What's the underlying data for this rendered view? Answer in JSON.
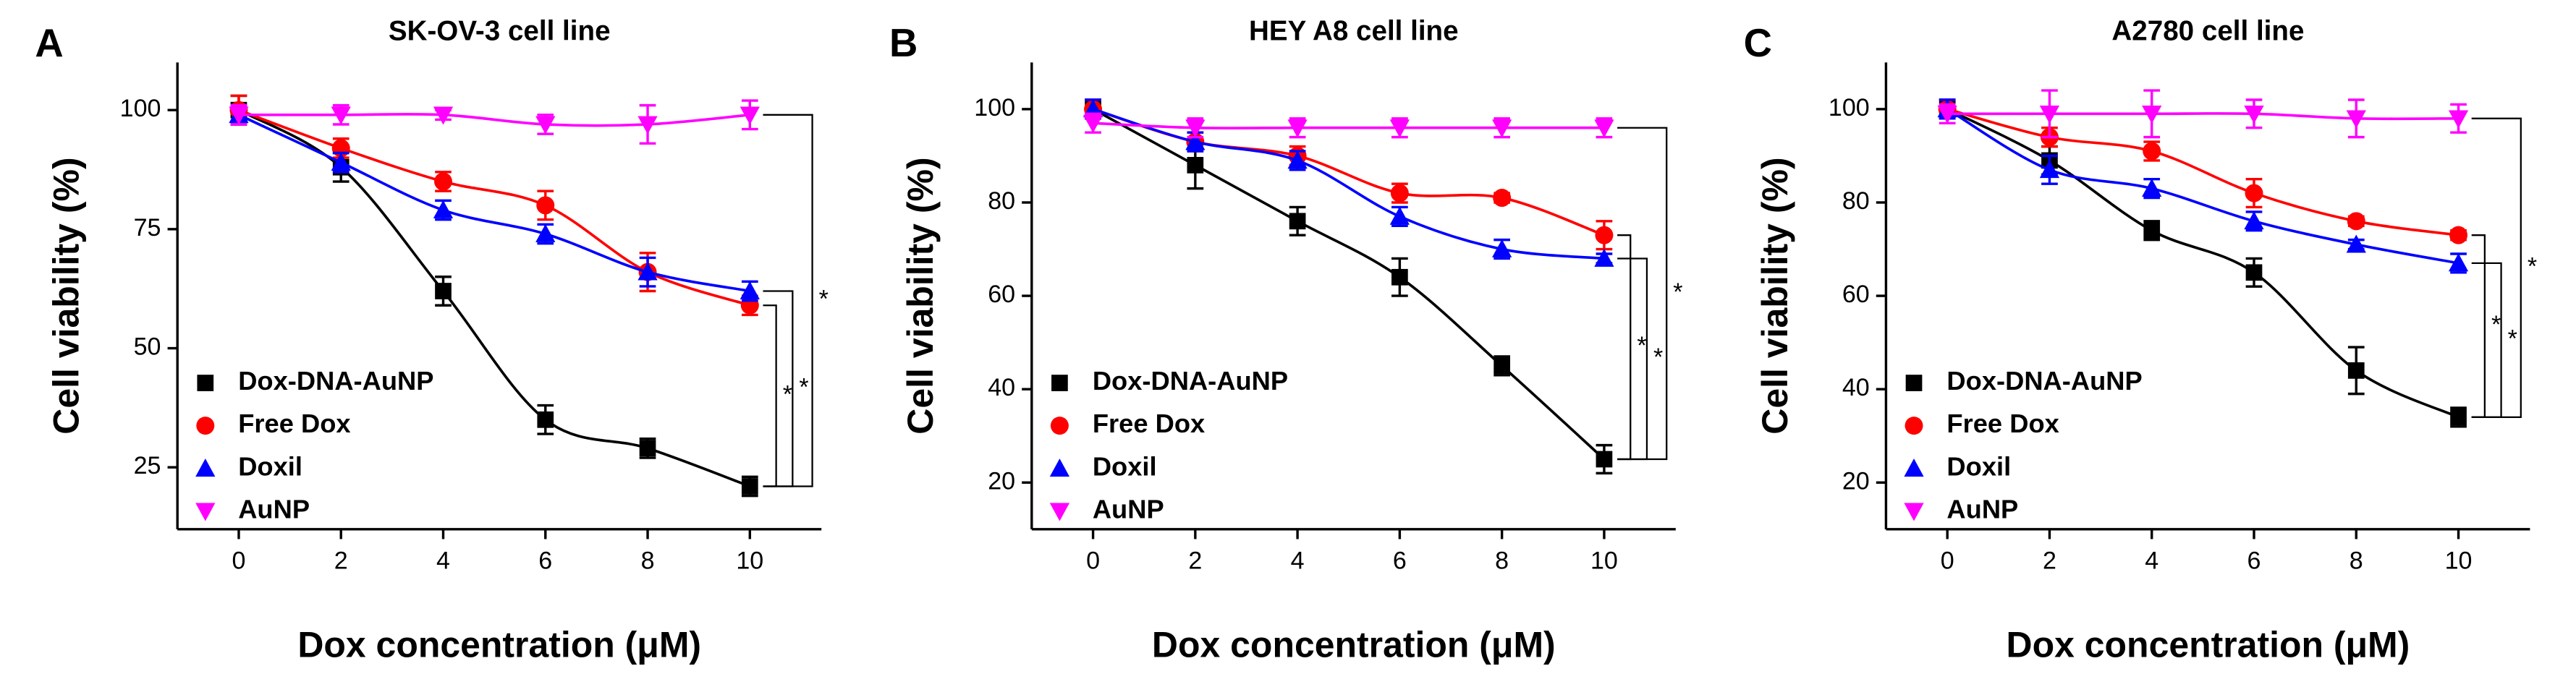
{
  "chart_data": [
    {
      "type": "scatter",
      "label": "A",
      "title": "SK-OV-3 cell line",
      "xlabel": "Dox concentration (μM)",
      "ylabel": "Cell viability (%)",
      "x": [
        0,
        2,
        4,
        6,
        8,
        10
      ],
      "xlim": [
        -1.2,
        11.4
      ],
      "xticks": [
        0,
        2,
        4,
        6,
        8,
        10
      ],
      "ylim": [
        12,
        110
      ],
      "yticks": [
        25,
        50,
        75,
        100
      ],
      "legend": "lower left",
      "significance": [
        "*",
        "*",
        "*"
      ],
      "series": [
        {
          "name": "Dox-DNA-AuNP",
          "color": "#000000",
          "marker": "square",
          "values": [
            100,
            88,
            62,
            35,
            29,
            21
          ],
          "errors": [
            3,
            3,
            3,
            3,
            2,
            2
          ]
        },
        {
          "name": "Free Dox",
          "color": "#ff0000",
          "marker": "circle",
          "values": [
            100,
            92,
            85,
            80,
            66,
            59
          ],
          "errors": [
            3,
            2,
            2,
            3,
            4,
            2
          ]
        },
        {
          "name": "Doxil",
          "color": "#0000ff",
          "marker": "triangle-up",
          "values": [
            99,
            89,
            79,
            74,
            66,
            62
          ],
          "errors": [
            2,
            2,
            2,
            2,
            3,
            2
          ]
        },
        {
          "name": "AuNP",
          "color": "#ff00ff",
          "marker": "triangle-down",
          "values": [
            99,
            99,
            99,
            97,
            97,
            99
          ],
          "errors": [
            2,
            2,
            1,
            2,
            4,
            3
          ]
        }
      ]
    },
    {
      "type": "scatter",
      "label": "B",
      "title": "HEY A8 cell line",
      "xlabel": "Dox concentration (μM)",
      "ylabel": "Cell viability (%)",
      "x": [
        0,
        2,
        4,
        6,
        8,
        10
      ],
      "xlim": [
        -1.2,
        11.4
      ],
      "xticks": [
        0,
        2,
        4,
        6,
        8,
        10
      ],
      "ylim": [
        10,
        110
      ],
      "yticks": [
        20,
        40,
        60,
        80,
        100
      ],
      "legend": "lower left",
      "significance": [
        "*",
        "*",
        "*"
      ],
      "series": [
        {
          "name": "Dox-DNA-AuNP",
          "color": "#000000",
          "marker": "square",
          "values": [
            100,
            88,
            76,
            64,
            45,
            25
          ],
          "errors": [
            2,
            5,
            3,
            4,
            2,
            3
          ]
        },
        {
          "name": "Free Dox",
          "color": "#ff0000",
          "marker": "circle",
          "values": [
            100,
            93,
            90,
            82,
            81,
            73
          ],
          "errors": [
            2,
            2,
            2,
            2,
            1,
            3
          ]
        },
        {
          "name": "Doxil",
          "color": "#0000ff",
          "marker": "triangle-up",
          "values": [
            100,
            93,
            89,
            77,
            70,
            68
          ],
          "errors": [
            2,
            2,
            2,
            2,
            2,
            1
          ]
        },
        {
          "name": "AuNP",
          "color": "#ff00ff",
          "marker": "triangle-down",
          "values": [
            97,
            96,
            96,
            96,
            96,
            96
          ],
          "errors": [
            2,
            2,
            2,
            2,
            2,
            2
          ]
        }
      ]
    },
    {
      "type": "scatter",
      "label": "C",
      "title": "A2780 cell line",
      "xlabel": "Dox concentration (μM)",
      "ylabel": "Cell viability (%)",
      "x": [
        0,
        2,
        4,
        6,
        8,
        10
      ],
      "xlim": [
        -1.2,
        11.4
      ],
      "xticks": [
        0,
        2,
        4,
        6,
        8,
        10
      ],
      "ylim": [
        10,
        110
      ],
      "yticks": [
        20,
        40,
        60,
        80,
        100
      ],
      "legend": "lower left",
      "significance": [
        "*",
        "*",
        "*"
      ],
      "series": [
        {
          "name": "Dox-DNA-AuNP",
          "color": "#000000",
          "marker": "square",
          "values": [
            100,
            89,
            74,
            65,
            44,
            34
          ],
          "errors": [
            2,
            3,
            2,
            3,
            5,
            2
          ]
        },
        {
          "name": "Free Dox",
          "color": "#ff0000",
          "marker": "circle",
          "values": [
            100,
            94,
            91,
            82,
            76,
            73
          ],
          "errors": [
            2,
            2,
            2,
            3,
            1,
            1
          ]
        },
        {
          "name": "Doxil",
          "color": "#0000ff",
          "marker": "triangle-up",
          "values": [
            100,
            87,
            83,
            76,
            71,
            67
          ],
          "errors": [
            2,
            3,
            2,
            2,
            1,
            2
          ]
        },
        {
          "name": "AuNP",
          "color": "#ff00ff",
          "marker": "triangle-down",
          "values": [
            99,
            99,
            99,
            99,
            98,
            98
          ],
          "errors": [
            2,
            5,
            5,
            3,
            4,
            3
          ]
        }
      ]
    }
  ]
}
